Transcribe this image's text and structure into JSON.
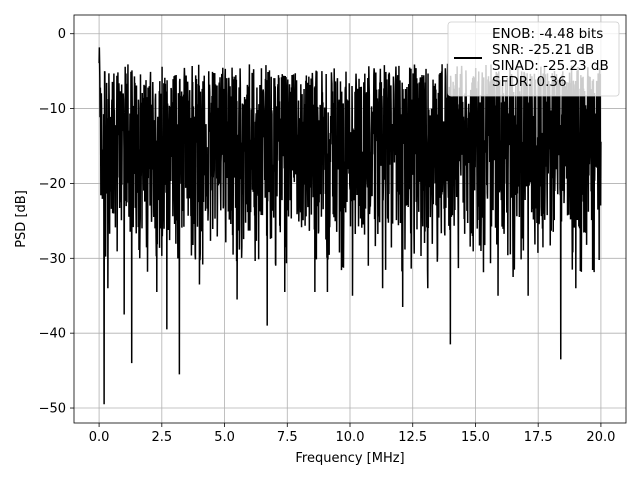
{
  "chart_data": {
    "type": "line",
    "title": "",
    "xlabel": "Frequency [MHz]",
    "ylabel": "PSD [dB]",
    "xlim": [
      -1.0,
      21.0
    ],
    "ylim": [
      -52.0,
      2.5
    ],
    "xticks": [
      0.0,
      2.5,
      5.0,
      7.5,
      10.0,
      12.5,
      15.0,
      17.5,
      20.0
    ],
    "xtick_labels": [
      "0.0",
      "2.5",
      "5.0",
      "7.5",
      "10.0",
      "12.5",
      "15.0",
      "17.5",
      "20.0"
    ],
    "yticks": [
      0,
      -10,
      -20,
      -30,
      -40,
      -50
    ],
    "ytick_labels": [
      "0",
      "−10",
      "−20",
      "−30",
      "−40",
      "−50"
    ],
    "grid": true,
    "legend_position": "top-right",
    "line_color": "#000000",
    "series": [
      {
        "x_range": [
          0.0,
          20.0
        ],
        "peak": {
          "x": 0.0,
          "y": 0.0
        },
        "envelope_top": -5.0,
        "envelope_bottom": -27.0,
        "deep_notches": [
          {
            "x": 0.2,
            "y": -49.5
          },
          {
            "x": 1.3,
            "y": -44.0
          },
          {
            "x": 3.2,
            "y": -45.5
          },
          {
            "x": 2.7,
            "y": -39.5
          },
          {
            "x": 6.7,
            "y": -39.0
          },
          {
            "x": 0.35,
            "y": -34.0
          },
          {
            "x": 1.0,
            "y": -37.5
          },
          {
            "x": 14.0,
            "y": -41.5
          },
          {
            "x": 18.4,
            "y": -43.5
          },
          {
            "x": 12.1,
            "y": -36.5
          },
          {
            "x": 10.1,
            "y": -35.0
          },
          {
            "x": 15.9,
            "y": -35.0
          },
          {
            "x": 17.1,
            "y": -35.0
          },
          {
            "x": 5.5,
            "y": -35.5
          },
          {
            "x": 7.4,
            "y": -34.5
          },
          {
            "x": 8.6,
            "y": -34.5
          },
          {
            "x": 9.1,
            "y": -34.5
          },
          {
            "x": 4.0,
            "y": -33.5
          },
          {
            "x": 2.3,
            "y": -34.5
          },
          {
            "x": 11.3,
            "y": -34.0
          },
          {
            "x": 13.1,
            "y": -34.0
          },
          {
            "x": 19.0,
            "y": -34.0
          },
          {
            "x": 16.5,
            "y": -32.5
          }
        ]
      }
    ],
    "legend": {
      "lines": [
        "ENOB: -4.48 bits",
        "SNR: -25.21 dB",
        "SINAD: -25.23 dB",
        "SFDR: 0.36"
      ]
    }
  }
}
